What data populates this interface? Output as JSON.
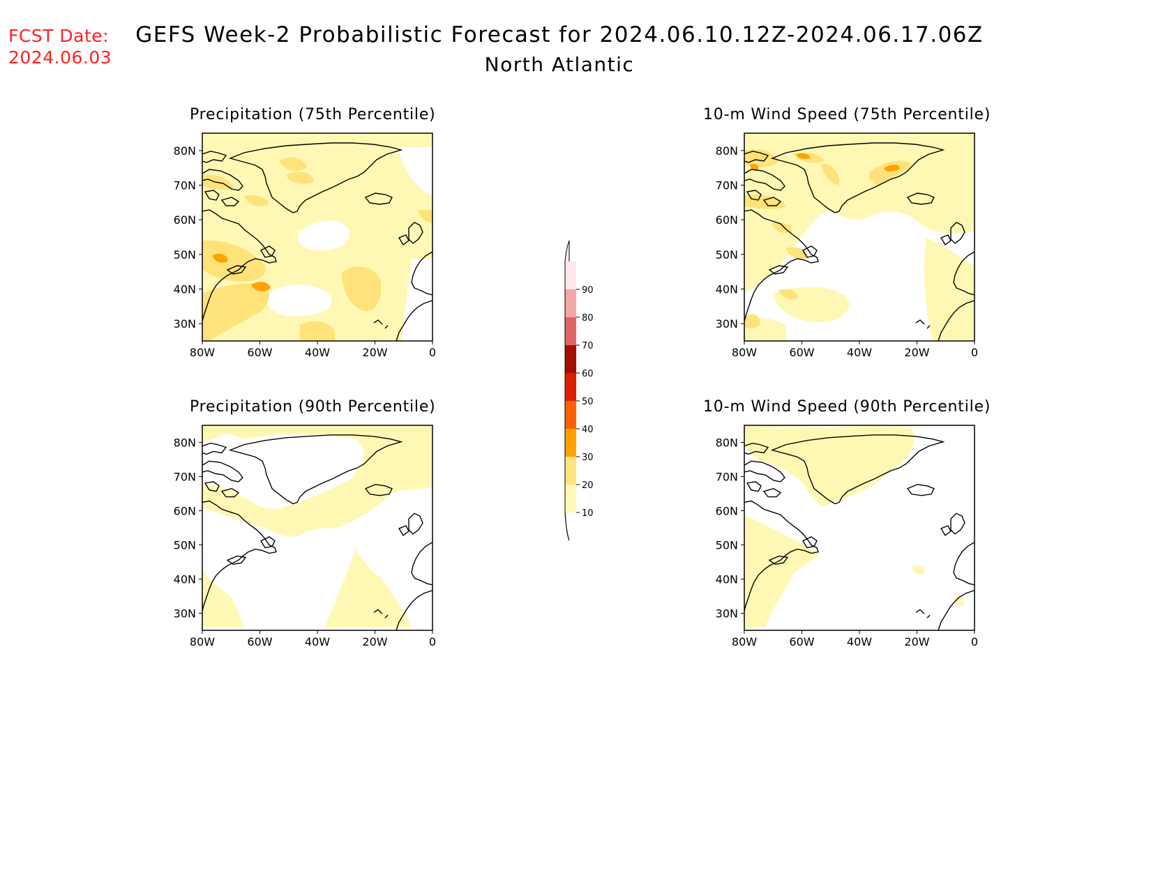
{
  "fcst": {
    "label": "FCST Date:",
    "date": "2024.06.03"
  },
  "title": {
    "main": "GEFS Week-2 Probabilistic Forecast for 2024.06.10.12Z-2024.06.17.06Z",
    "region": "North Atlantic"
  },
  "panels": [
    {
      "title": "Precipitation (75th Percentile)"
    },
    {
      "title": "10-m Wind Speed (75th Percentile)"
    },
    {
      "title": "Precipitation (90th Percentile)"
    },
    {
      "title": "10-m Wind Speed (90th Percentile)"
    }
  ],
  "axes": {
    "lat_labels": [
      "80N",
      "70N",
      "60N",
      "50N",
      "40N",
      "30N"
    ],
    "lat_values": [
      80,
      70,
      60,
      50,
      40,
      30
    ],
    "lon_labels": [
      "80W",
      "60W",
      "40W",
      "20W",
      "0"
    ],
    "lon_values": [
      -80,
      -60,
      -40,
      -20,
      0
    ],
    "lat_range": [
      25,
      85
    ],
    "lon_range": [
      -80,
      0
    ]
  },
  "colorbar": {
    "levels": [
      10,
      20,
      30,
      40,
      50,
      60,
      70,
      80,
      90
    ],
    "colors": [
      "#fff8b4",
      "#ffe27a",
      "#ffa200",
      "#ff6000",
      "#e01e00",
      "#a50e00",
      "#e06464",
      "#f5a6a6",
      "#ffe8ec"
    ],
    "labels": [
      "10",
      "20",
      "30",
      "40",
      "50",
      "60",
      "70",
      "80",
      "90"
    ]
  }
}
